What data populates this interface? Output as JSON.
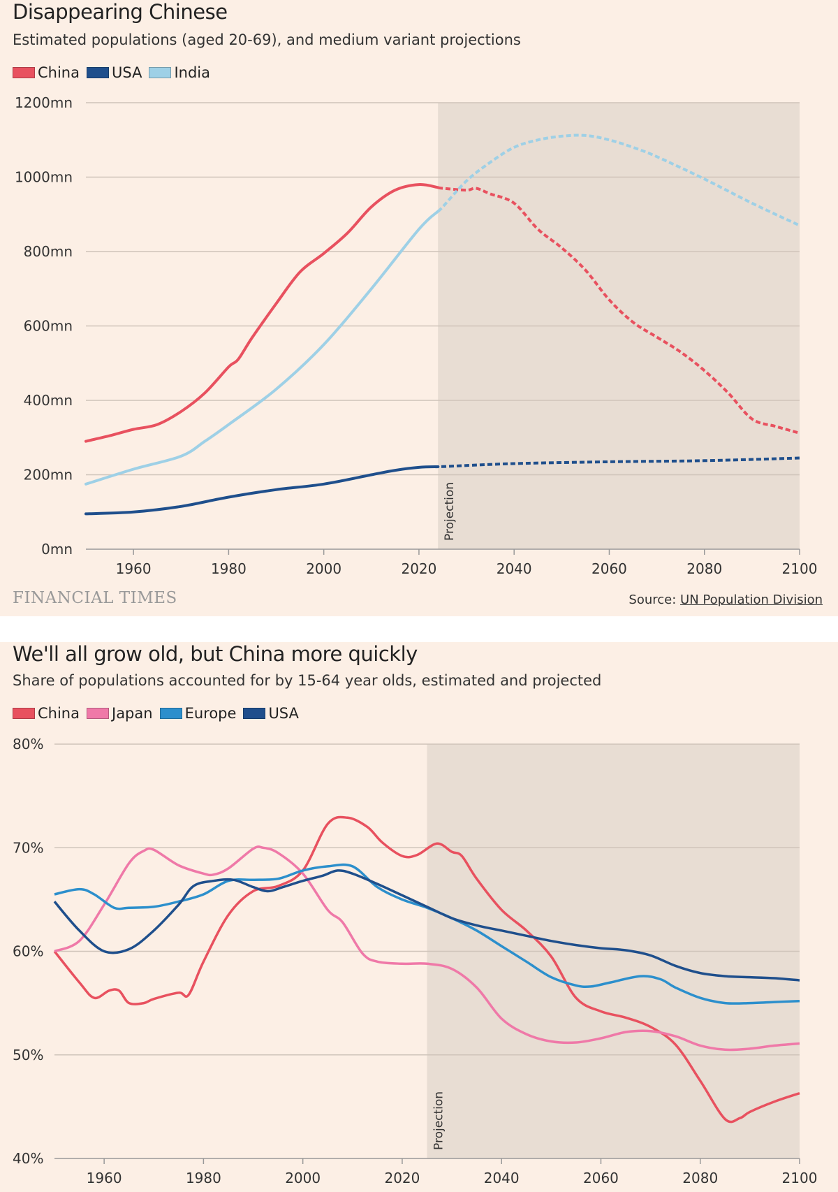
{
  "colors": {
    "background": "#fcefe5",
    "projection_shade": "#e8ddd3",
    "grid": "#cfc4ba",
    "China": "#e8515f",
    "USA": "#1f4f8c",
    "India": "#9ed0e6",
    "Japan": "#ef79a8",
    "Europe": "#2c8fcc"
  },
  "footer": {
    "logo": "FINANCIAL TIMES",
    "source_label": "Source:",
    "source_link": "UN Population Division"
  },
  "chart_data": [
    {
      "type": "line",
      "title": "Disappearing Chinese",
      "subtitle": "Estimated populations (aged 20-69), and medium variant projections",
      "projection_label": "Projection",
      "projection_start": 2024,
      "projection_style": "dashed",
      "xlim": [
        1950,
        2100
      ],
      "ylim": [
        0,
        1200
      ],
      "xticks": [
        1960,
        1980,
        2000,
        2020,
        2040,
        2060,
        2080,
        2100
      ],
      "yticks": [
        {
          "v": 0,
          "label": "0mn"
        },
        {
          "v": 200,
          "label": "200mn"
        },
        {
          "v": 400,
          "label": "400mn"
        },
        {
          "v": 600,
          "label": "600mn"
        },
        {
          "v": 800,
          "label": "800mn"
        },
        {
          "v": 1000,
          "label": "1000mn"
        },
        {
          "v": 1200,
          "label": "1200mn"
        }
      ],
      "grid": true,
      "legend_placement": "top-left",
      "series": [
        {
          "name": "China",
          "color": "#e8515f",
          "points": [
            [
              1950,
              290
            ],
            [
              1955,
              305
            ],
            [
              1960,
              322
            ],
            [
              1965,
              335
            ],
            [
              1970,
              370
            ],
            [
              1975,
              420
            ],
            [
              1980,
              490
            ],
            [
              1982,
              510
            ],
            [
              1985,
              570
            ],
            [
              1990,
              660
            ],
            [
              1995,
              745
            ],
            [
              2000,
              795
            ],
            [
              2005,
              850
            ],
            [
              2010,
              920
            ],
            [
              2015,
              965
            ],
            [
              2020,
              980
            ],
            [
              2025,
              970
            ],
            [
              2030,
              965
            ],
            [
              2032,
              970
            ],
            [
              2035,
              955
            ],
            [
              2040,
              930
            ],
            [
              2045,
              860
            ],
            [
              2050,
              810
            ],
            [
              2055,
              750
            ],
            [
              2060,
              670
            ],
            [
              2065,
              610
            ],
            [
              2070,
              570
            ],
            [
              2075,
              530
            ],
            [
              2080,
              480
            ],
            [
              2085,
              420
            ],
            [
              2090,
              350
            ],
            [
              2095,
              330
            ],
            [
              2100,
              312
            ]
          ]
        },
        {
          "name": "USA",
          "color": "#1f4f8c",
          "points": [
            [
              1950,
              95
            ],
            [
              1960,
              100
            ],
            [
              1970,
              115
            ],
            [
              1980,
              140
            ],
            [
              1990,
              160
            ],
            [
              2000,
              175
            ],
            [
              2010,
              200
            ],
            [
              2015,
              212
            ],
            [
              2020,
              220
            ],
            [
              2025,
              222
            ],
            [
              2040,
              230
            ],
            [
              2060,
              235
            ],
            [
              2080,
              238
            ],
            [
              2100,
              245
            ]
          ]
        },
        {
          "name": "India",
          "color": "#9ed0e6",
          "points": [
            [
              1950,
              175
            ],
            [
              1960,
              215
            ],
            [
              1970,
              250
            ],
            [
              1975,
              290
            ],
            [
              1980,
              335
            ],
            [
              1990,
              430
            ],
            [
              2000,
              550
            ],
            [
              2010,
              700
            ],
            [
              2020,
              860
            ],
            [
              2025,
              920
            ],
            [
              2030,
              990
            ],
            [
              2035,
              1040
            ],
            [
              2040,
              1080
            ],
            [
              2045,
              1100
            ],
            [
              2050,
              1110
            ],
            [
              2055,
              1112
            ],
            [
              2060,
              1100
            ],
            [
              2065,
              1080
            ],
            [
              2070,
              1055
            ],
            [
              2080,
              995
            ],
            [
              2090,
              930
            ],
            [
              2100,
              870
            ]
          ]
        }
      ]
    },
    {
      "type": "line",
      "title": "We'll all grow old, but China more quickly",
      "subtitle": "Share of populations accounted for by 15-64 year olds, estimated and projected",
      "projection_label": "Projection",
      "projection_start": 2025,
      "projection_style": "solid",
      "xlim": [
        1950,
        2100
      ],
      "ylim": [
        40,
        80
      ],
      "xticks": [
        1960,
        1980,
        2000,
        2020,
        2040,
        2060,
        2080,
        2100
      ],
      "yticks": [
        {
          "v": 40,
          "label": "40%"
        },
        {
          "v": 50,
          "label": "50%"
        },
        {
          "v": 60,
          "label": "60%"
        },
        {
          "v": 70,
          "label": "70%"
        },
        {
          "v": 80,
          "label": "80%"
        }
      ],
      "grid": true,
      "legend_placement": "top-left",
      "series": [
        {
          "name": "China",
          "color": "#e8515f",
          "points": [
            [
              1950,
              60
            ],
            [
              1955,
              57
            ],
            [
              1958,
              55.5
            ],
            [
              1961,
              56.2
            ],
            [
              1963,
              56.2
            ],
            [
              1965,
              55
            ],
            [
              1968,
              55
            ],
            [
              1970,
              55.4
            ],
            [
              1975,
              56
            ],
            [
              1977,
              55.8
            ],
            [
              1980,
              59
            ],
            [
              1985,
              63.5
            ],
            [
              1990,
              65.8
            ],
            [
              1995,
              66.3
            ],
            [
              2000,
              67.8
            ],
            [
              2005,
              72.3
            ],
            [
              2009,
              72.9
            ],
            [
              2013,
              72
            ],
            [
              2016,
              70.5
            ],
            [
              2020,
              69.2
            ],
            [
              2023,
              69.3
            ],
            [
              2027,
              70.4
            ],
            [
              2030,
              69.6
            ],
            [
              2032,
              69.2
            ],
            [
              2035,
              67
            ],
            [
              2040,
              64
            ],
            [
              2045,
              62
            ],
            [
              2050,
              59.5
            ],
            [
              2055,
              55.5
            ],
            [
              2060,
              54.2
            ],
            [
              2065,
              53.6
            ],
            [
              2070,
              52.7
            ],
            [
              2075,
              51
            ],
            [
              2080,
              47.5
            ],
            [
              2085,
              43.8
            ],
            [
              2088,
              43.9
            ],
            [
              2090,
              44.5
            ],
            [
              2095,
              45.5
            ],
            [
              2100,
              46.3
            ]
          ]
        },
        {
          "name": "Japan",
          "color": "#ef79a8",
          "points": [
            [
              1950,
              60
            ],
            [
              1955,
              61
            ],
            [
              1960,
              64.5
            ],
            [
              1965,
              68.5
            ],
            [
              1968,
              69.7
            ],
            [
              1970,
              69.8
            ],
            [
              1975,
              68.3
            ],
            [
              1980,
              67.5
            ],
            [
              1982,
              67.4
            ],
            [
              1985,
              68
            ],
            [
              1990,
              69.9
            ],
            [
              1992,
              70
            ],
            [
              1995,
              69.5
            ],
            [
              2000,
              67.5
            ],
            [
              2005,
              64
            ],
            [
              2008,
              62.8
            ],
            [
              2012,
              59.8
            ],
            [
              2015,
              59
            ],
            [
              2020,
              58.8
            ],
            [
              2025,
              58.8
            ],
            [
              2030,
              58.3
            ],
            [
              2035,
              56.5
            ],
            [
              2040,
              53.5
            ],
            [
              2045,
              52
            ],
            [
              2050,
              51.3
            ],
            [
              2055,
              51.2
            ],
            [
              2060,
              51.6
            ],
            [
              2065,
              52.2
            ],
            [
              2070,
              52.3
            ],
            [
              2075,
              51.8
            ],
            [
              2080,
              50.9
            ],
            [
              2085,
              50.5
            ],
            [
              2090,
              50.6
            ],
            [
              2095,
              50.9
            ],
            [
              2100,
              51.1
            ]
          ]
        },
        {
          "name": "Europe",
          "color": "#2c8fcc",
          "points": [
            [
              1950,
              65.5
            ],
            [
              1955,
              66
            ],
            [
              1958,
              65.5
            ],
            [
              1962,
              64.2
            ],
            [
              1965,
              64.2
            ],
            [
              1970,
              64.3
            ],
            [
              1975,
              64.8
            ],
            [
              1980,
              65.5
            ],
            [
              1985,
              66.8
            ],
            [
              1990,
              66.9
            ],
            [
              1995,
              67
            ],
            [
              2000,
              67.8
            ],
            [
              2005,
              68.2
            ],
            [
              2010,
              68.2
            ],
            [
              2015,
              66.2
            ],
            [
              2020,
              65
            ],
            [
              2025,
              64.2
            ],
            [
              2030,
              63.2
            ],
            [
              2035,
              62
            ],
            [
              2040,
              60.5
            ],
            [
              2045,
              59
            ],
            [
              2050,
              57.5
            ],
            [
              2055,
              56.7
            ],
            [
              2058,
              56.6
            ],
            [
              2062,
              57
            ],
            [
              2068,
              57.6
            ],
            [
              2072,
              57.3
            ],
            [
              2075,
              56.5
            ],
            [
              2080,
              55.5
            ],
            [
              2085,
              55
            ],
            [
              2090,
              55
            ],
            [
              2095,
              55.1
            ],
            [
              2100,
              55.2
            ]
          ]
        },
        {
          "name": "USA",
          "color": "#1f4f8c",
          "points": [
            [
              1950,
              64.8
            ],
            [
              1955,
              62
            ],
            [
              1960,
              60
            ],
            [
              1965,
              60.2
            ],
            [
              1970,
              62
            ],
            [
              1975,
              64.5
            ],
            [
              1978,
              66.3
            ],
            [
              1982,
              66.8
            ],
            [
              1986,
              66.9
            ],
            [
              1990,
              66.2
            ],
            [
              1993,
              65.8
            ],
            [
              1996,
              66.2
            ],
            [
              2000,
              66.8
            ],
            [
              2004,
              67.3
            ],
            [
              2007,
              67.8
            ],
            [
              2010,
              67.5
            ],
            [
              2015,
              66.5
            ],
            [
              2020,
              65.4
            ],
            [
              2025,
              64.3
            ],
            [
              2030,
              63.2
            ],
            [
              2035,
              62.5
            ],
            [
              2040,
              62
            ],
            [
              2045,
              61.5
            ],
            [
              2050,
              61
            ],
            [
              2055,
              60.6
            ],
            [
              2060,
              60.3
            ],
            [
              2065,
              60.1
            ],
            [
              2070,
              59.6
            ],
            [
              2075,
              58.6
            ],
            [
              2080,
              57.9
            ],
            [
              2085,
              57.6
            ],
            [
              2090,
              57.5
            ],
            [
              2095,
              57.4
            ],
            [
              2100,
              57.2
            ]
          ]
        }
      ]
    }
  ]
}
